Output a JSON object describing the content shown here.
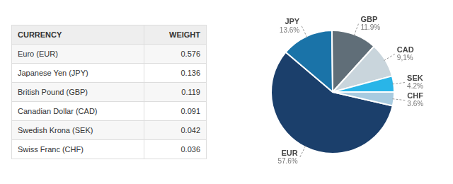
{
  "chart_data": [
    {
      "type": "table",
      "columns": [
        "CURRENCY",
        "WEIGHT"
      ],
      "categories": [
        "Euro (EUR)",
        "Japanese Yen (JPY)",
        "British Pound (GBP)",
        "Canadian Dollar (CAD)",
        "Swedish Krona (SEK)",
        "Swiss Franc (CHF)"
      ],
      "values": [
        0.576,
        0.136,
        0.119,
        0.091,
        0.042,
        0.036
      ]
    },
    {
      "type": "pie",
      "categories": [
        "EUR",
        "JPY",
        "GBP",
        "CAD",
        "SEK",
        "CHF"
      ],
      "values": [
        57.6,
        13.6,
        11.9,
        9.1,
        4.2,
        3.6
      ],
      "value_labels": [
        "57.6%",
        "13.6%",
        "11.9%",
        "9,1%",
        "4.2%",
        "3.6%"
      ],
      "colors": [
        "#1B3F6B",
        "#1A73A8",
        "#606E78",
        "#C9D5DC",
        "#29B5E8",
        "#A8CBE0"
      ],
      "data_labels": true
    }
  ]
}
